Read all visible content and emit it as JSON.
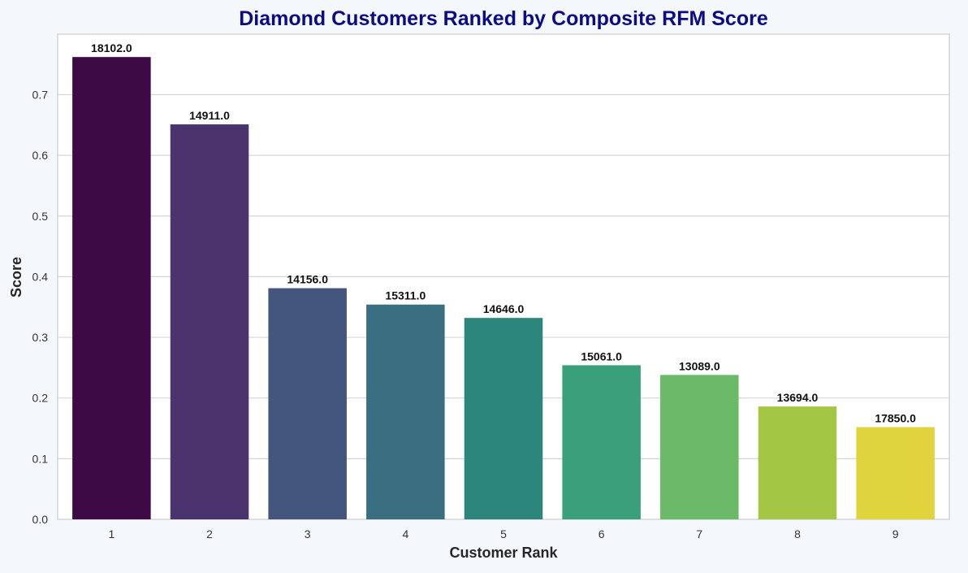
{
  "chart_data": {
    "type": "bar",
    "title": "Diamond Customers Ranked by Composite RFM Score",
    "xlabel": "Customer Rank",
    "ylabel": "Score",
    "categories": [
      "1",
      "2",
      "3",
      "4",
      "5",
      "6",
      "7",
      "8",
      "9"
    ],
    "values": [
      0.762,
      0.651,
      0.381,
      0.354,
      0.332,
      0.254,
      0.238,
      0.186,
      0.152
    ],
    "data_labels": [
      "18102.0",
      "14911.0",
      "14156.0",
      "15311.0",
      "14646.0",
      "15061.0",
      "13089.0",
      "13694.0",
      "17850.0"
    ],
    "ylim": [
      0,
      0.8
    ],
    "yticks": [
      "0.0",
      "0.1",
      "0.2",
      "0.3",
      "0.4",
      "0.5",
      "0.6",
      "0.7"
    ],
    "grid": true,
    "legend": "none",
    "colors": [
      "#440154",
      "#482878",
      "#3e4989",
      "#31688e",
      "#26828e",
      "#1f9e89",
      "#35b779",
      "#6ece58",
      "#b5de2b"
    ],
    "bar_colors": [
      "#3e0a46",
      "#4b346e",
      "#45567e",
      "#3a6e81",
      "#2d867c",
      "#3aa07c",
      "#6aba6a",
      "#a3c745",
      "#e0d43c"
    ],
    "title_color": "#0b0b86"
  }
}
